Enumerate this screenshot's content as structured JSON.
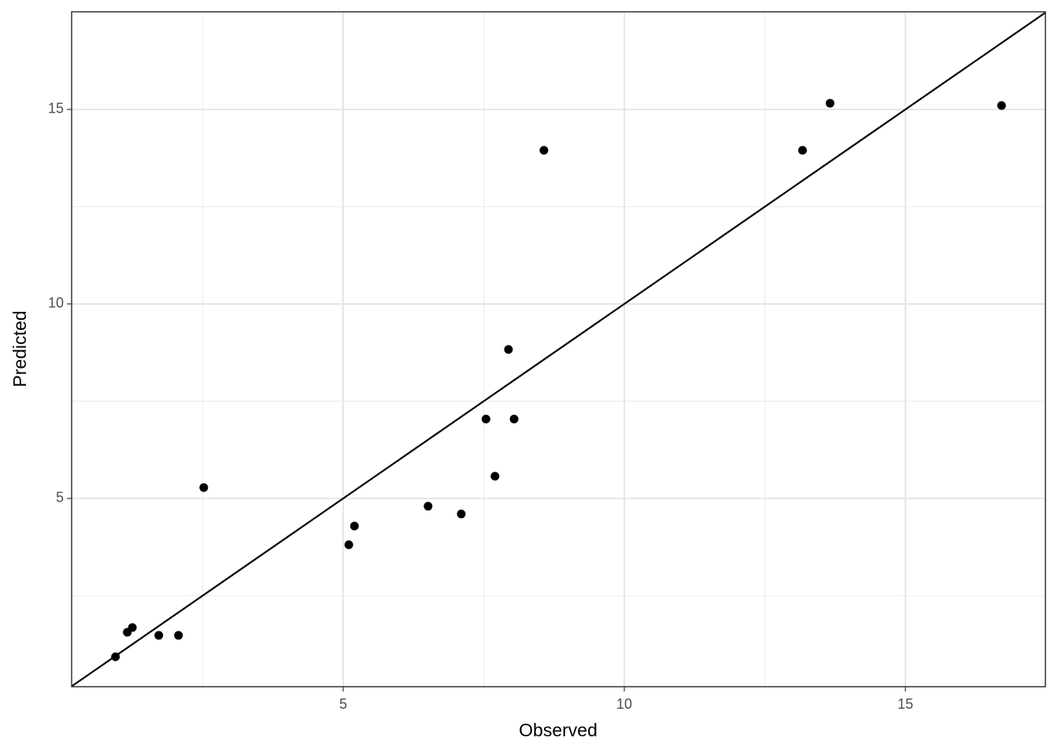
{
  "chart_data": {
    "type": "scatter",
    "x_label": "Observed",
    "y_label": "Predicted",
    "x": [
      0.95,
      1.16,
      1.25,
      1.72,
      2.07,
      2.52,
      5.1,
      5.2,
      6.51,
      7.1,
      7.54,
      7.7,
      7.94,
      8.04,
      8.57,
      13.17,
      13.66,
      16.71
    ],
    "series": [
      {
        "color": "#000000",
        "values": [
          0.93,
          1.56,
          1.68,
          1.48,
          1.48,
          5.28,
          3.81,
          4.29,
          4.8,
          4.6,
          7.04,
          5.57,
          8.83,
          7.04,
          13.95,
          13.95,
          15.16,
          15.1
        ]
      }
    ],
    "xlim": [
      0.17,
      17.49
    ],
    "ylim": [
      0.16,
      17.51
    ],
    "xticks": [
      5,
      10,
      15
    ],
    "yticks": [
      5,
      10,
      15
    ],
    "xminor": [
      2.5,
      7.5,
      12.5
    ],
    "yminor": [
      2.5,
      7.5,
      12.5
    ],
    "grid": true,
    "identity_line": true
  }
}
